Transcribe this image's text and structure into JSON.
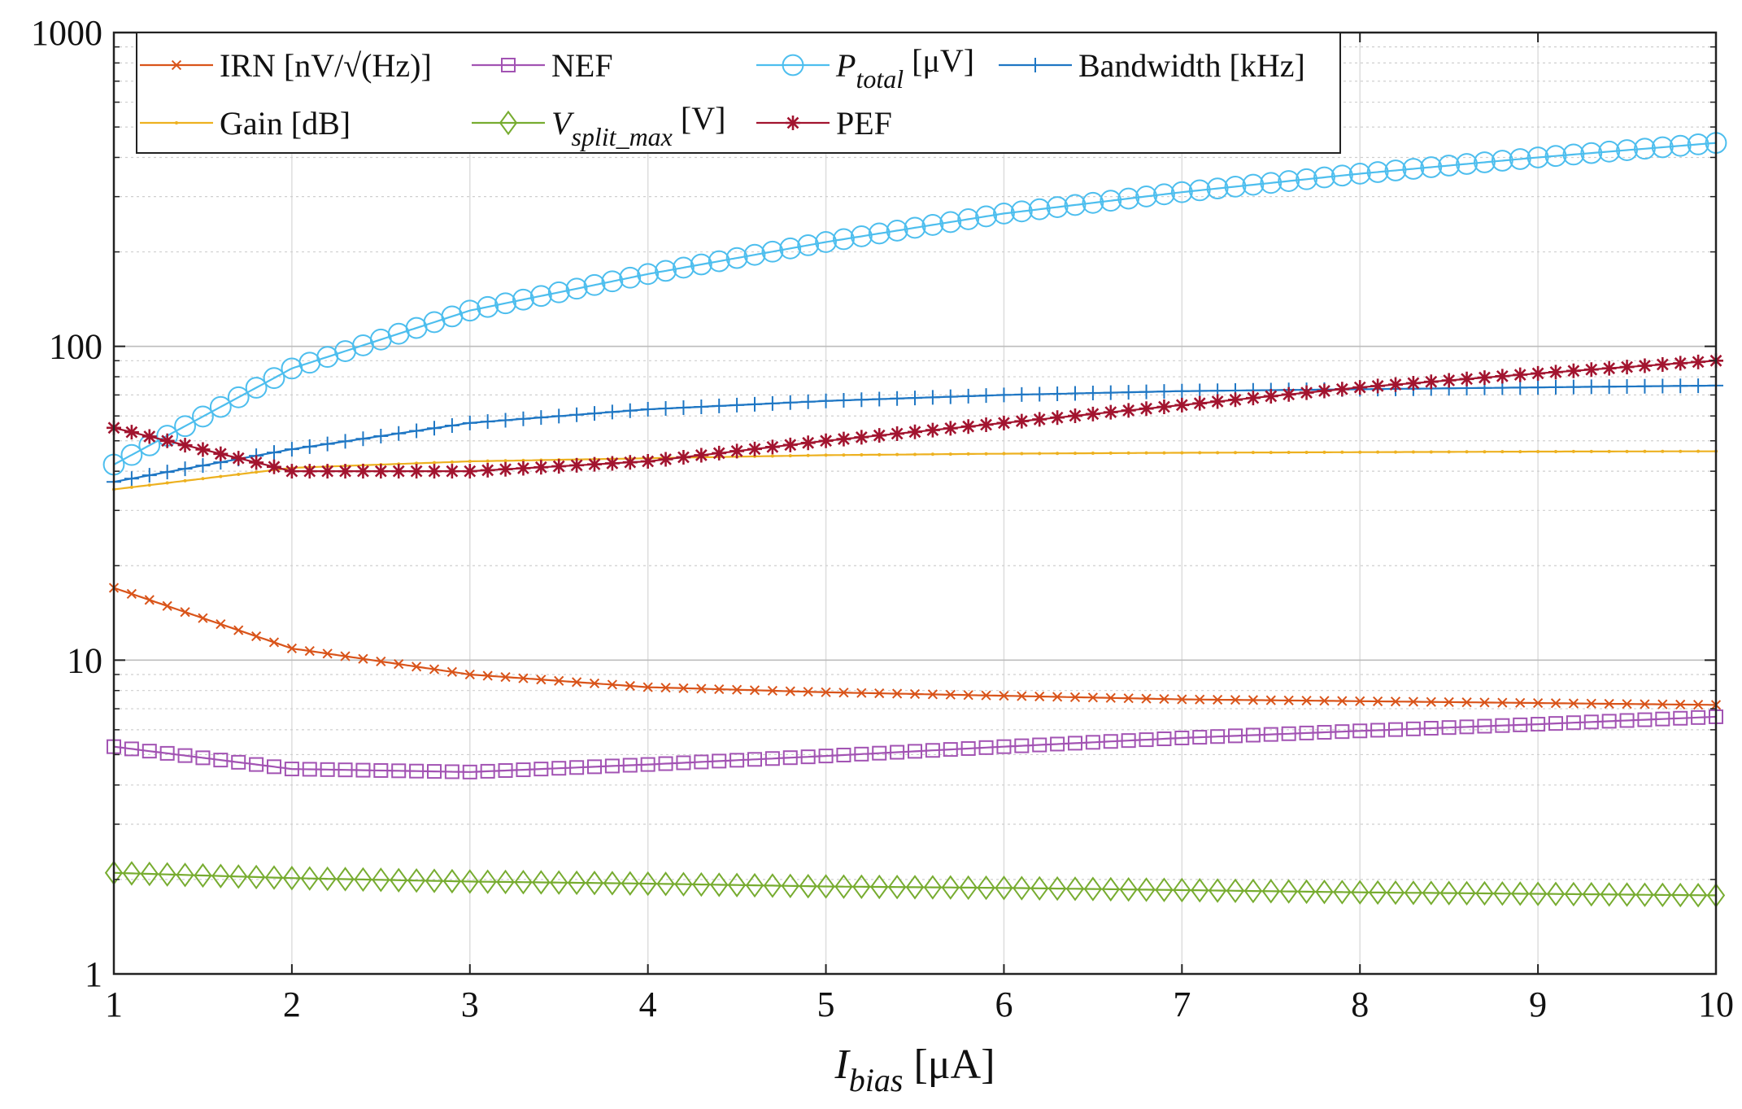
{
  "chart_data": {
    "type": "line",
    "yscale": "log",
    "xlim": [
      1,
      10
    ],
    "ylim": [
      1,
      1000
    ],
    "grid": true,
    "legend_location": "top-left",
    "x_ticks": [
      "1",
      "2",
      "3",
      "4",
      "5",
      "6",
      "7",
      "8",
      "9",
      "10"
    ],
    "y_ticks": [
      "1",
      "10",
      "100",
      "1000"
    ],
    "xlabel": {
      "main": "I",
      "sub": "bias",
      "unit": " [μA]"
    },
    "ylabel": "",
    "x": [
      1,
      2,
      3,
      4,
      5,
      6,
      7,
      8,
      9,
      10
    ],
    "series": [
      {
        "name": "IRN [nV/√(Hz)]",
        "label_parts": {
          "main": "IRN [nV/√(Hz)]",
          "sub": "",
          "unit": ""
        },
        "color": "#d9541a",
        "marker": "x",
        "values": [
          17,
          10.9,
          9.0,
          8.2,
          7.9,
          7.7,
          7.5,
          7.4,
          7.3,
          7.2
        ]
      },
      {
        "name": "NEF",
        "label_parts": {
          "main": "NEF",
          "sub": "",
          "unit": ""
        },
        "color": "#a253b3",
        "marker": "square",
        "values": [
          5.3,
          4.5,
          4.4,
          4.65,
          4.95,
          5.3,
          5.65,
          5.95,
          6.25,
          6.6
        ]
      },
      {
        "name": "P_total [μV]",
        "label_parts": {
          "main": "P",
          "sub": "total",
          "unit": " [μV]"
        },
        "color": "#4dbeee",
        "marker": "circle",
        "values": [
          42,
          85,
          130,
          170,
          215,
          265,
          310,
          355,
          400,
          445
        ]
      },
      {
        "name": "Bandwidth [kHz]",
        "label_parts": {
          "main": "Bandwidth [kHz]",
          "sub": "",
          "unit": ""
        },
        "color": "#1f77c4",
        "marker": "plus",
        "values": [
          37,
          47,
          57,
          63,
          67,
          70,
          72,
          73,
          74,
          75
        ]
      },
      {
        "name": "Gain [dB]",
        "label_parts": {
          "main": "Gain [dB]",
          "sub": "",
          "unit": ""
        },
        "color": "#edb120",
        "marker": "dot",
        "values": [
          35,
          41,
          43,
          44,
          45,
          45.5,
          45.8,
          46,
          46.2,
          46.3
        ]
      },
      {
        "name": "V_split_max [V]",
        "label_parts": {
          "main": "V",
          "sub": "split_max",
          "unit": " [V]"
        },
        "color": "#77ac30",
        "marker": "diamond",
        "values": [
          2.1,
          2.02,
          1.97,
          1.94,
          1.9,
          1.88,
          1.85,
          1.82,
          1.8,
          1.78
        ]
      },
      {
        "name": "PEF",
        "label_parts": {
          "main": "PEF",
          "sub": "",
          "unit": ""
        },
        "color": "#a2142f",
        "marker": "star",
        "values": [
          55,
          40,
          40,
          43,
          50,
          57,
          65,
          74,
          82,
          90
        ]
      }
    ]
  }
}
